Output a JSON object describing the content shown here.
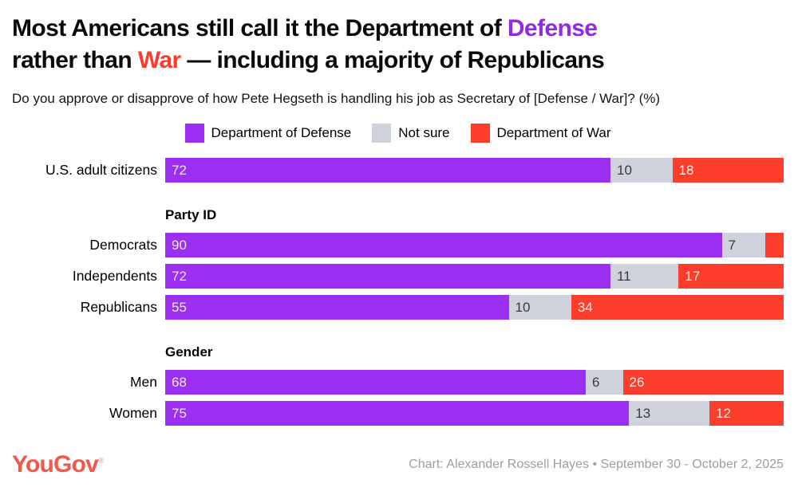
{
  "title": {
    "line1_prefix": "Most Americans still call it the Department of ",
    "line1_highlight": "Defense",
    "line2_prefix": "rather than ",
    "line2_highlight": "War",
    "line2_suffix": " — including a majority of Republicans"
  },
  "subtitle": "Do you approve or disapprove of how Pete Hegseth is handling his job as Secretary of [Defense / War]? (%)",
  "colors": {
    "defense_purple": "#9B2FF2",
    "not_sure_gray": "#CFD2DB",
    "war_red": "#FC3D2B",
    "title_defense": "#9229E4",
    "title_war": "#FB3B2D",
    "logo_coral": "#F2594B",
    "credit_gray": "#9E9E9E"
  },
  "legend": [
    {
      "label": "Department of Defense",
      "color": "#9B2FF2"
    },
    {
      "label": "Not sure",
      "color": "#CFD2DB"
    },
    {
      "label": "Department of War",
      "color": "#FC3D2B"
    }
  ],
  "chart_data": {
    "type": "bar",
    "orientation": "horizontal",
    "stacked": true,
    "unit": "%",
    "series": [
      "Department of Defense",
      "Not sure",
      "Department of War"
    ],
    "series_colors": [
      "#9B2FF2",
      "#CFD2DB",
      "#FC3D2B"
    ],
    "value_label_colors": [
      "#F1E4FD",
      "#3A3A3A",
      "#FFF0ED"
    ],
    "xlim": [
      0,
      100
    ],
    "grid": false,
    "legend_position": "top-center",
    "groups": [
      {
        "header": "",
        "rows": [
          {
            "label": "U.S. adult citizens",
            "values": [
              72,
              10,
              18
            ],
            "labels": [
              "72",
              "10",
              "18"
            ]
          }
        ]
      },
      {
        "header": "Party ID",
        "rows": [
          {
            "label": "Democrats",
            "values": [
              90,
              7,
              3
            ],
            "labels": [
              "90",
              "7",
              ""
            ]
          },
          {
            "label": "Independents",
            "values": [
              72,
              11,
              17
            ],
            "labels": [
              "72",
              "11",
              "17"
            ]
          },
          {
            "label": "Republicans",
            "values": [
              55,
              10,
              34
            ],
            "labels": [
              "55",
              "10",
              "34"
            ]
          }
        ]
      },
      {
        "header": "Gender",
        "rows": [
          {
            "label": "Men",
            "values": [
              68,
              6,
              26
            ],
            "labels": [
              "68",
              "6",
              "26"
            ]
          },
          {
            "label": "Women",
            "values": [
              75,
              13,
              12
            ],
            "labels": [
              "75",
              "13",
              "12"
            ]
          }
        ]
      }
    ]
  },
  "footer": {
    "logo_text": "YouGov",
    "logo_reg": "®",
    "credit": "Chart: Alexander Rossell Hayes • September 30 - October 2, 2025"
  }
}
